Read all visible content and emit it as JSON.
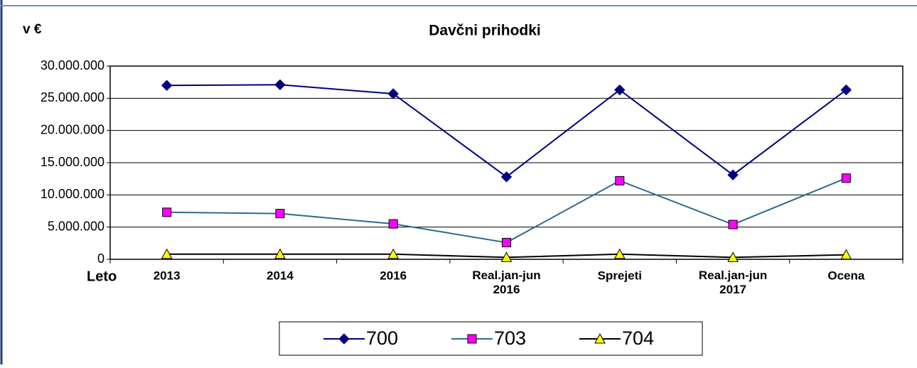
{
  "chart_data": {
    "type": "line",
    "title": "Davčni prihodki",
    "unit_label": "v €",
    "x_label": "Leto",
    "categories": [
      "2013",
      "2014",
      "2016",
      "Real.jan-jun\n2016",
      "Sprejeti",
      "Real.jan-jun\n2017",
      "Ocena"
    ],
    "series": [
      {
        "name": "700",
        "color": "#000080",
        "marker": "diamond",
        "marker_color": "#000080",
        "values": [
          27000000,
          27100000,
          25700000,
          12800000,
          26300000,
          13100000,
          26300000
        ]
      },
      {
        "name": "703",
        "color": "#2f6a8f",
        "marker": "square",
        "marker_color": "#ff00ff",
        "values": [
          7300000,
          7100000,
          5500000,
          2600000,
          12200000,
          5400000,
          12600000
        ]
      },
      {
        "name": "704",
        "color": "#000000",
        "marker": "triangle",
        "marker_color": "#ffff00",
        "values": [
          800000,
          800000,
          800000,
          300000,
          800000,
          300000,
          700000
        ]
      }
    ],
    "ylim": [
      0,
      30000000
    ],
    "yticks": [
      {
        "value": 0,
        "label": "0"
      },
      {
        "value": 5000000,
        "label": "5.000.000"
      },
      {
        "value": 10000000,
        "label": "10.000.000"
      },
      {
        "value": 15000000,
        "label": "15.000.000"
      },
      {
        "value": 20000000,
        "label": "20.000.000"
      },
      {
        "value": 25000000,
        "label": "25.000.000"
      },
      {
        "value": 30000000,
        "label": "30.000.000"
      }
    ],
    "grid": true
  }
}
